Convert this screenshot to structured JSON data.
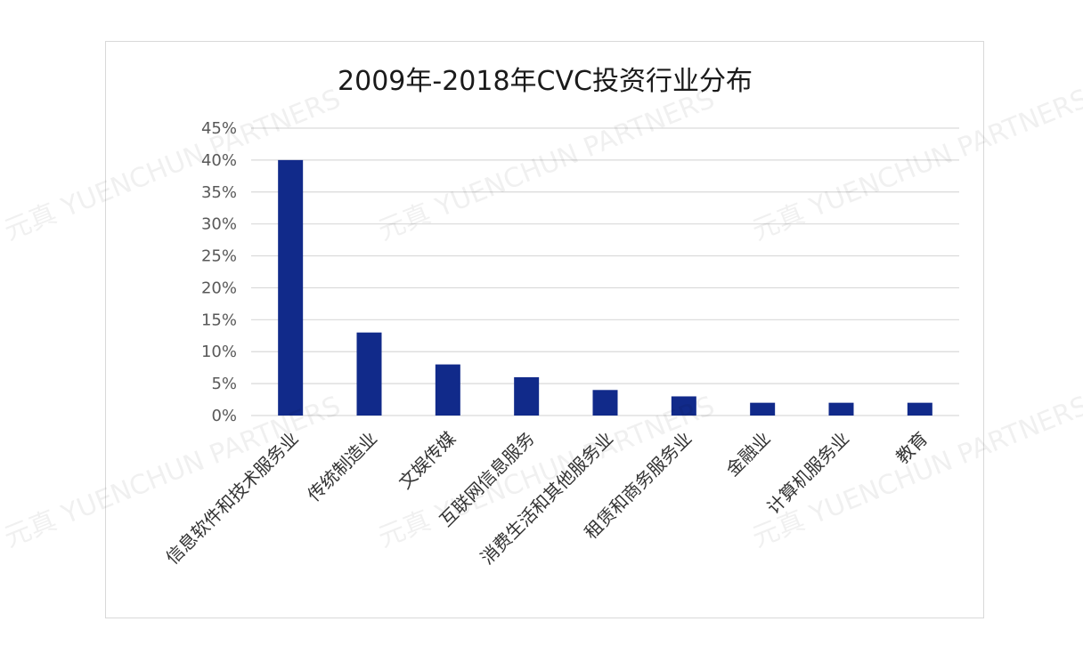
{
  "chart_data": {
    "type": "bar",
    "title": "2009年-2018年CVC投资行业分布",
    "xlabel": "",
    "ylabel": "",
    "categories": [
      "信息软件和技术服务业",
      "传统制造业",
      "文娱传媒",
      "互联网信息服务",
      "消费生活和其他服务业",
      "租赁和商务服务业",
      "金融业",
      "计算机服务业",
      "教育"
    ],
    "values": [
      40,
      13,
      8,
      6,
      4,
      3,
      2,
      2,
      2
    ],
    "ylim": [
      0,
      45
    ],
    "yticks": [
      "0%",
      "5%",
      "10%",
      "15%",
      "20%",
      "25%",
      "30%",
      "35%",
      "40%",
      "45%"
    ],
    "grid": true,
    "legend": "none",
    "bar_color": "#112a8a"
  },
  "watermark_text": "元真 YUENCHUN PARTNERS"
}
